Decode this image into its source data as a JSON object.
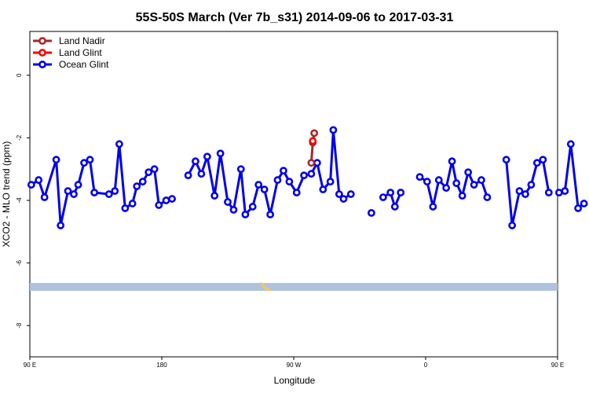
{
  "chart_data": {
    "type": "line",
    "title": "55S-50S March (Ver 7b_s31)   2014-09-06 to 2017-03-31",
    "xlabel": "Longitude",
    "ylabel": "XCO2 - MLO trend (ppm)",
    "xlim": [
      90,
      450
    ],
    "ylim": [
      -9.0,
      1.4
    ],
    "x_ticks": [
      {
        "value": 90,
        "label": "90 E"
      },
      {
        "value": 180,
        "label": "180"
      },
      {
        "value": 270,
        "label": "90 W"
      },
      {
        "value": 360,
        "label": "0"
      },
      {
        "value": 450,
        "label": "90 E"
      },
      {
        "value": 540,
        "label": "180"
      }
    ],
    "y_ticks": [
      {
        "value": 0,
        "label": "0"
      },
      {
        "value": -2,
        "label": "-2"
      },
      {
        "value": -4,
        "label": "-4"
      },
      {
        "value": -6,
        "label": "-6"
      },
      {
        "value": -8,
        "label": "-8"
      }
    ],
    "legend_position": "top-left",
    "grid": false,
    "series": [
      {
        "name": "Land Nadir",
        "color": "#a52a2a",
        "segments": [
          [
            [
              282,
              -2.8
            ],
            [
              283,
              -2.15
            ],
            [
              284,
              -1.85
            ]
          ]
        ]
      },
      {
        "name": "Land Glint",
        "color": "#ff0000",
        "segments": [
          [
            [
              283,
              -2.1
            ]
          ]
        ]
      },
      {
        "name": "Ocean Glint",
        "color": "#0000ee",
        "segments": [
          [
            [
              91,
              -3.5
            ],
            [
              96,
              -3.35
            ],
            [
              100,
              -3.9
            ],
            [
              108,
              -2.7
            ],
            [
              111,
              -4.8
            ],
            [
              116,
              -3.7
            ],
            [
              120,
              -3.8
            ],
            [
              123,
              -3.5
            ],
            [
              127,
              -2.8
            ],
            [
              131,
              -2.7
            ],
            [
              134,
              -3.75
            ],
            [
              144,
              -3.8
            ],
            [
              148,
              -3.7
            ],
            [
              151,
              -2.2
            ],
            [
              155,
              -4.25
            ],
            [
              160,
              -4.1
            ],
            [
              163,
              -3.55
            ],
            [
              167,
              -3.4
            ],
            [
              171,
              -3.1
            ],
            [
              175,
              -3.0
            ],
            [
              178,
              -4.15
            ],
            [
              183,
              -4.0
            ],
            [
              187,
              -3.95
            ]
          ],
          [
            [
              198,
              -3.2
            ],
            [
              203,
              -2.75
            ],
            [
              207,
              -3.15
            ],
            [
              211,
              -2.6
            ],
            [
              216,
              -3.85
            ],
            [
              220,
              -2.5
            ],
            [
              225,
              -4.05
            ],
            [
              229,
              -4.3
            ],
            [
              234,
              -3.0
            ],
            [
              237,
              -4.45
            ],
            [
              242,
              -4.2
            ],
            [
              246,
              -3.5
            ],
            [
              250,
              -3.65
            ],
            [
              254,
              -4.45
            ],
            [
              259,
              -3.35
            ],
            [
              263,
              -3.05
            ],
            [
              267,
              -3.4
            ],
            [
              272,
              -3.75
            ],
            [
              277,
              -3.2
            ],
            [
              282,
              -3.15
            ],
            [
              286,
              -2.8
            ],
            [
              290,
              -3.65
            ],
            [
              295,
              -3.4
            ],
            [
              297,
              -1.75
            ],
            [
              301,
              -3.8
            ],
            [
              304,
              -3.95
            ],
            [
              309,
              -3.8
            ]
          ],
          [
            [
              323,
              -4.4
            ]
          ],
          [
            [
              331,
              -3.9
            ],
            [
              336,
              -3.75
            ],
            [
              339,
              -4.2
            ],
            [
              343,
              -3.75
            ]
          ],
          [
            [
              356,
              -3.25
            ],
            [
              361,
              -3.4
            ],
            [
              365,
              -4.2
            ],
            [
              369,
              -3.35
            ],
            [
              374,
              -3.6
            ],
            [
              378,
              -2.75
            ],
            [
              381,
              -3.45
            ],
            [
              385,
              -3.85
            ],
            [
              389,
              -3.1
            ],
            [
              393,
              -3.5
            ],
            [
              398,
              -3.35
            ],
            [
              402,
              -3.9
            ]
          ],
          [
            [
              415,
              -2.7
            ],
            [
              419,
              -4.8
            ],
            [
              424,
              -3.7
            ],
            [
              428,
              -3.8
            ],
            [
              432,
              -3.5
            ],
            [
              436,
              -2.8
            ],
            [
              440,
              -2.7
            ],
            [
              444,
              -3.75
            ]
          ],
          [
            [
              451,
              -3.75
            ],
            [
              455,
              -3.7
            ],
            [
              459,
              -2.2
            ],
            [
              464,
              -4.25
            ],
            [
              468,
              -4.1
            ]
          ]
        ]
      }
    ]
  }
}
